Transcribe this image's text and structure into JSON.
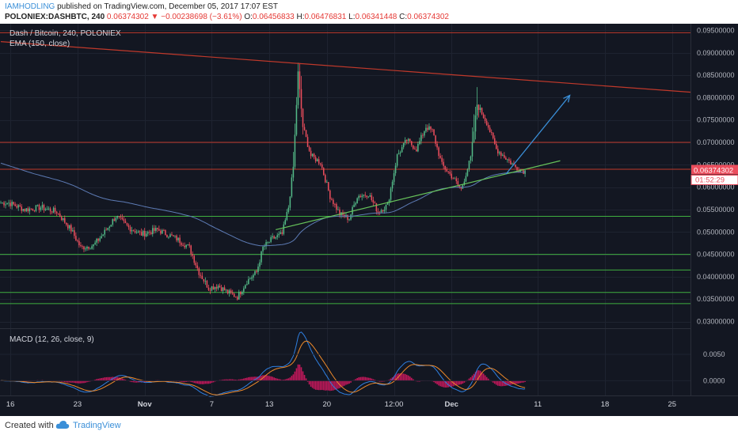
{
  "header": {
    "author": "IAMHODLING",
    "published": "published on TradingView.com, December 05, 2017 17:07 EST",
    "symbol": "POLONIEX:DASHBTC, 240",
    "last": "0.06374302",
    "change": "−0.00238698 (−3.61%)",
    "o_label": "O:",
    "o": "0.06456833",
    "h_label": "H:",
    "h": "0.06476831",
    "l_label": "L:",
    "l": "0.06341448",
    "c_label": "C:",
    "c": "0.06374302"
  },
  "legend": {
    "title": "Dash / Bitcoin, 240, POLONIEX",
    "ema": "EMA (150, close)",
    "macd": "MACD (12, 26, close, 9)"
  },
  "price_badge": "0.06374302",
  "timer_badge": "01:52:29",
  "footer": {
    "created": "Created with",
    "brand": "TradingView"
  },
  "colors": {
    "background": "#131722",
    "up": "#53b987",
    "down": "#eb4d5c",
    "ema": "#5d7bb5",
    "support": "#3fae3f",
    "resistance": "#c0392b",
    "trend_support": "#66c25a",
    "arrow": "#3a8fd8",
    "macd": "#2f7fe0",
    "signal": "#ee8a2a",
    "hist": "#c2185b"
  },
  "chart_data": {
    "type": "candlestick",
    "price_axis": {
      "ticks": [
        "0.09500000",
        "0.09000000",
        "0.08500000",
        "0.08000000",
        "0.07500000",
        "0.07000000",
        "0.06500000",
        "0.06000000",
        "0.05500000",
        "0.05000000",
        "0.04500000",
        "0.04000000",
        "0.03500000",
        "0.03000000"
      ],
      "range": [
        0.0285,
        0.0965
      ]
    },
    "x_axis": {
      "labels": [
        "16",
        "23",
        "Nov",
        "7",
        "13",
        "20",
        "12:00",
        "Dec",
        "11",
        "18",
        "25"
      ],
      "label_index": [
        6,
        48,
        90,
        132,
        168,
        204,
        246,
        282,
        336,
        378,
        420
      ],
      "bold": [
        "Nov",
        "Dec"
      ]
    },
    "bars_visible": 432,
    "waypoints": [
      [
        0,
        0.0565
      ],
      [
        5,
        0.0565
      ],
      [
        15,
        0.055
      ],
      [
        25,
        0.0555
      ],
      [
        35,
        0.0545
      ],
      [
        44,
        0.0505
      ],
      [
        50,
        0.0465
      ],
      [
        58,
        0.047
      ],
      [
        64,
        0.0495
      ],
      [
        72,
        0.0535
      ],
      [
        80,
        0.051
      ],
      [
        88,
        0.0495
      ],
      [
        98,
        0.0505
      ],
      [
        110,
        0.0485
      ],
      [
        118,
        0.0465
      ],
      [
        124,
        0.041
      ],
      [
        130,
        0.0375
      ],
      [
        136,
        0.038
      ],
      [
        142,
        0.0365
      ],
      [
        148,
        0.0355
      ],
      [
        154,
        0.039
      ],
      [
        160,
        0.041
      ],
      [
        164,
        0.0465
      ],
      [
        170,
        0.0485
      ],
      [
        176,
        0.0495
      ],
      [
        180,
        0.0555
      ],
      [
        183,
        0.0645
      ],
      [
        186,
        0.0855
      ],
      [
        189,
        0.0735
      ],
      [
        194,
        0.067
      ],
      [
        200,
        0.0655
      ],
      [
        206,
        0.058
      ],
      [
        212,
        0.054
      ],
      [
        218,
        0.053
      ],
      [
        223,
        0.058
      ],
      [
        230,
        0.0585
      ],
      [
        236,
        0.0545
      ],
      [
        242,
        0.056
      ],
      [
        248,
        0.067
      ],
      [
        254,
        0.0705
      ],
      [
        260,
        0.0685
      ],
      [
        266,
        0.0735
      ],
      [
        270,
        0.0725
      ],
      [
        276,
        0.065
      ],
      [
        282,
        0.0625
      ],
      [
        288,
        0.0595
      ],
      [
        294,
        0.0665
      ],
      [
        298,
        0.0785
      ],
      [
        304,
        0.0745
      ],
      [
        310,
        0.0685
      ],
      [
        316,
        0.0665
      ],
      [
        322,
        0.0645
      ],
      [
        328,
        0.0635
      ]
    ],
    "support_levels": [
      0.0535,
      0.045,
      0.0415,
      0.0365,
      0.034
    ],
    "resistance_levels": [
      0.0945,
      0.07,
      0.064
    ],
    "resistance_trend": [
      [
        0,
        0.0925
      ],
      [
        432,
        0.0812
      ]
    ],
    "support_trend": [
      [
        172,
        0.0505
      ],
      [
        350,
        0.0659
      ]
    ],
    "arrow": [
      [
        316,
        0.0629
      ],
      [
        356,
        0.0805
      ]
    ],
    "macd_axis": {
      "ticks": [
        "0.0050",
        "0.0000"
      ],
      "range": [
        -0.0028,
        0.0098
      ]
    }
  }
}
